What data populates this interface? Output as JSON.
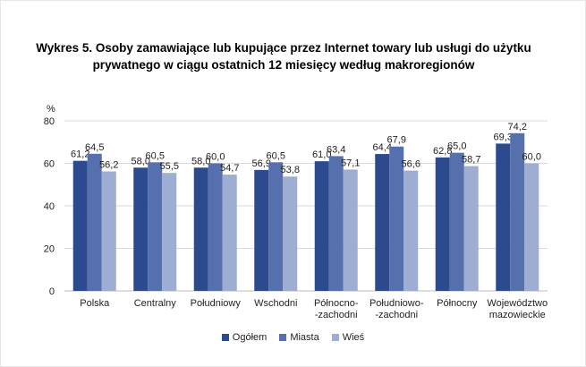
{
  "title": {
    "line1": "Wykres 5. Osoby zamawiające lub kupujące przez Internet towary lub usługi do użytku",
    "line2": "prywatnego w ciągu ostatnich 12 miesięcy według makroregionów"
  },
  "chart_data": {
    "type": "bar",
    "title": "Wykres 5. Osoby zamawiające lub kupujące przez Internet towary lub usługi do użytku prywatnego w ciągu ostatnich 12 miesięcy według makroregionów",
    "ylabel": "%",
    "xlabel": "",
    "ylim": [
      0,
      80
    ],
    "yticks": [
      0,
      20,
      40,
      60,
      80
    ],
    "grid": true,
    "legend_position": "bottom",
    "categories": [
      [
        "Polska"
      ],
      [
        "Centralny"
      ],
      [
        "Południowy"
      ],
      [
        "Wschodni"
      ],
      [
        "Północno-",
        "-zachodni"
      ],
      [
        "Południowo-",
        "-zachodni"
      ],
      [
        "Północny"
      ],
      [
        "Województwo",
        "mazowieckie"
      ]
    ],
    "series": [
      {
        "name": "Ogółem",
        "color": "#2e4a8e",
        "values": [
          61.2,
          58.0,
          58.0,
          56.9,
          61.0,
          64.4,
          62.8,
          69.3
        ]
      },
      {
        "name": "Miasta",
        "color": "#5570ad",
        "values": [
          64.5,
          60.5,
          60.0,
          60.5,
          63.4,
          67.9,
          65.0,
          74.2
        ]
      },
      {
        "name": "Wieś",
        "color": "#9eaed3",
        "values": [
          56.2,
          55.5,
          54.7,
          53.8,
          57.1,
          56.6,
          58.7,
          60.0
        ]
      }
    ],
    "data_labels": [
      [
        "61,2",
        "58,0",
        "58,0",
        "56,9",
        "61,0",
        "64,4",
        "62,8",
        "69,3"
      ],
      [
        "64,5",
        "60,5",
        "60,0",
        "60,5",
        "63,4",
        "67,9",
        "65,0",
        "74,2"
      ],
      [
        "56,2",
        "55,5",
        "54,7",
        "53,8",
        "57,1",
        "56,6",
        "58,7",
        "60,0"
      ]
    ]
  }
}
